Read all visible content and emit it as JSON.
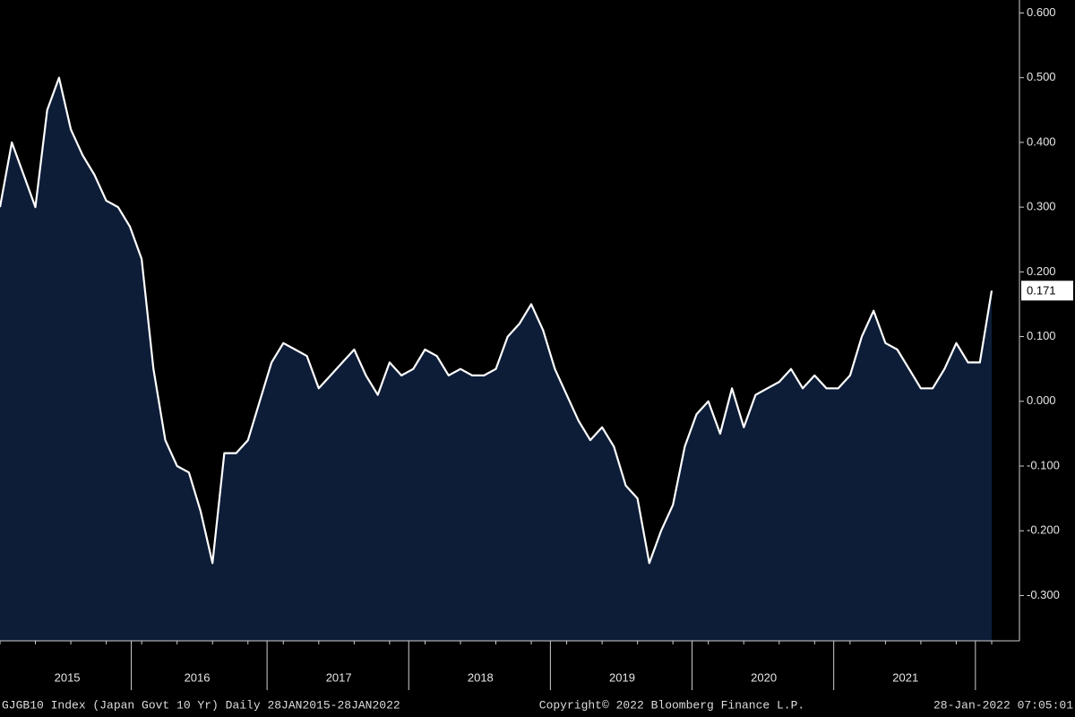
{
  "chart_data": {
    "type": "area",
    "categories": [
      null,
      null,
      null,
      null,
      null,
      null,
      "2015",
      null,
      null,
      null,
      null,
      null,
      null,
      null,
      null,
      null,
      null,
      "2016",
      null,
      null,
      null,
      null,
      null,
      null,
      null,
      null,
      null,
      null,
      null,
      "2017",
      null,
      null,
      null,
      null,
      null,
      null,
      null,
      null,
      null,
      null,
      null,
      "2018",
      null,
      null,
      null,
      null,
      null,
      null,
      null,
      null,
      null,
      null,
      null,
      "2019",
      null,
      null,
      null,
      null,
      null,
      null,
      null,
      null,
      null,
      null,
      null,
      "2020",
      null,
      null,
      null,
      null,
      null,
      null,
      null,
      null,
      null,
      null,
      null,
      "2021",
      null,
      null,
      null,
      null,
      null,
      null,
      null
    ],
    "values": [
      0.3,
      0.4,
      0.35,
      0.3,
      0.45,
      0.5,
      0.42,
      0.38,
      0.35,
      0.31,
      0.3,
      0.27,
      0.22,
      0.05,
      -0.06,
      -0.1,
      -0.11,
      -0.17,
      -0.25,
      -0.08,
      -0.08,
      -0.06,
      0.0,
      0.06,
      0.09,
      0.08,
      0.07,
      0.02,
      0.04,
      0.06,
      0.08,
      0.04,
      0.01,
      0.06,
      0.04,
      0.05,
      0.08,
      0.07,
      0.04,
      0.05,
      0.04,
      0.04,
      0.05,
      0.1,
      0.12,
      0.15,
      0.11,
      0.05,
      0.01,
      -0.03,
      -0.06,
      -0.04,
      -0.07,
      -0.13,
      -0.15,
      -0.25,
      -0.2,
      -0.16,
      -0.07,
      -0.02,
      0.0,
      -0.05,
      0.02,
      -0.04,
      0.01,
      0.02,
      0.03,
      0.05,
      0.02,
      0.04,
      0.02,
      0.02,
      0.04,
      0.1,
      0.14,
      0.09,
      0.08,
      0.05,
      0.02,
      0.02,
      0.05,
      0.09,
      0.06,
      0.06,
      0.171
    ],
    "line_color": "#ffffff",
    "fill_color": "#0d1d38",
    "ylim": [
      -0.37,
      0.62
    ],
    "yticks": [
      {
        "value": 0.6,
        "label": "0.600"
      },
      {
        "value": 0.5,
        "label": "0.500"
      },
      {
        "value": 0.4,
        "label": "0.400"
      },
      {
        "value": 0.3,
        "label": "0.300"
      },
      {
        "value": 0.2,
        "label": "0.200"
      },
      {
        "value": 0.1,
        "label": "0.100"
      },
      {
        "value": 0,
        "label": "0.000"
      },
      {
        "value": -0.1,
        "label": "-0.100"
      },
      {
        "value": -0.2,
        "label": "-0.200"
      },
      {
        "value": -0.3,
        "label": "-0.300"
      }
    ],
    "footer_left": "GJGB10 Index (Japan Govt 10 Yr)  Daily 28JAN2015-28JAN2022",
    "footer_center": "Copyright© 2022 Bloomberg Finance L.P.",
    "footer_right": "28-Jan-2022 07:05:01"
  }
}
